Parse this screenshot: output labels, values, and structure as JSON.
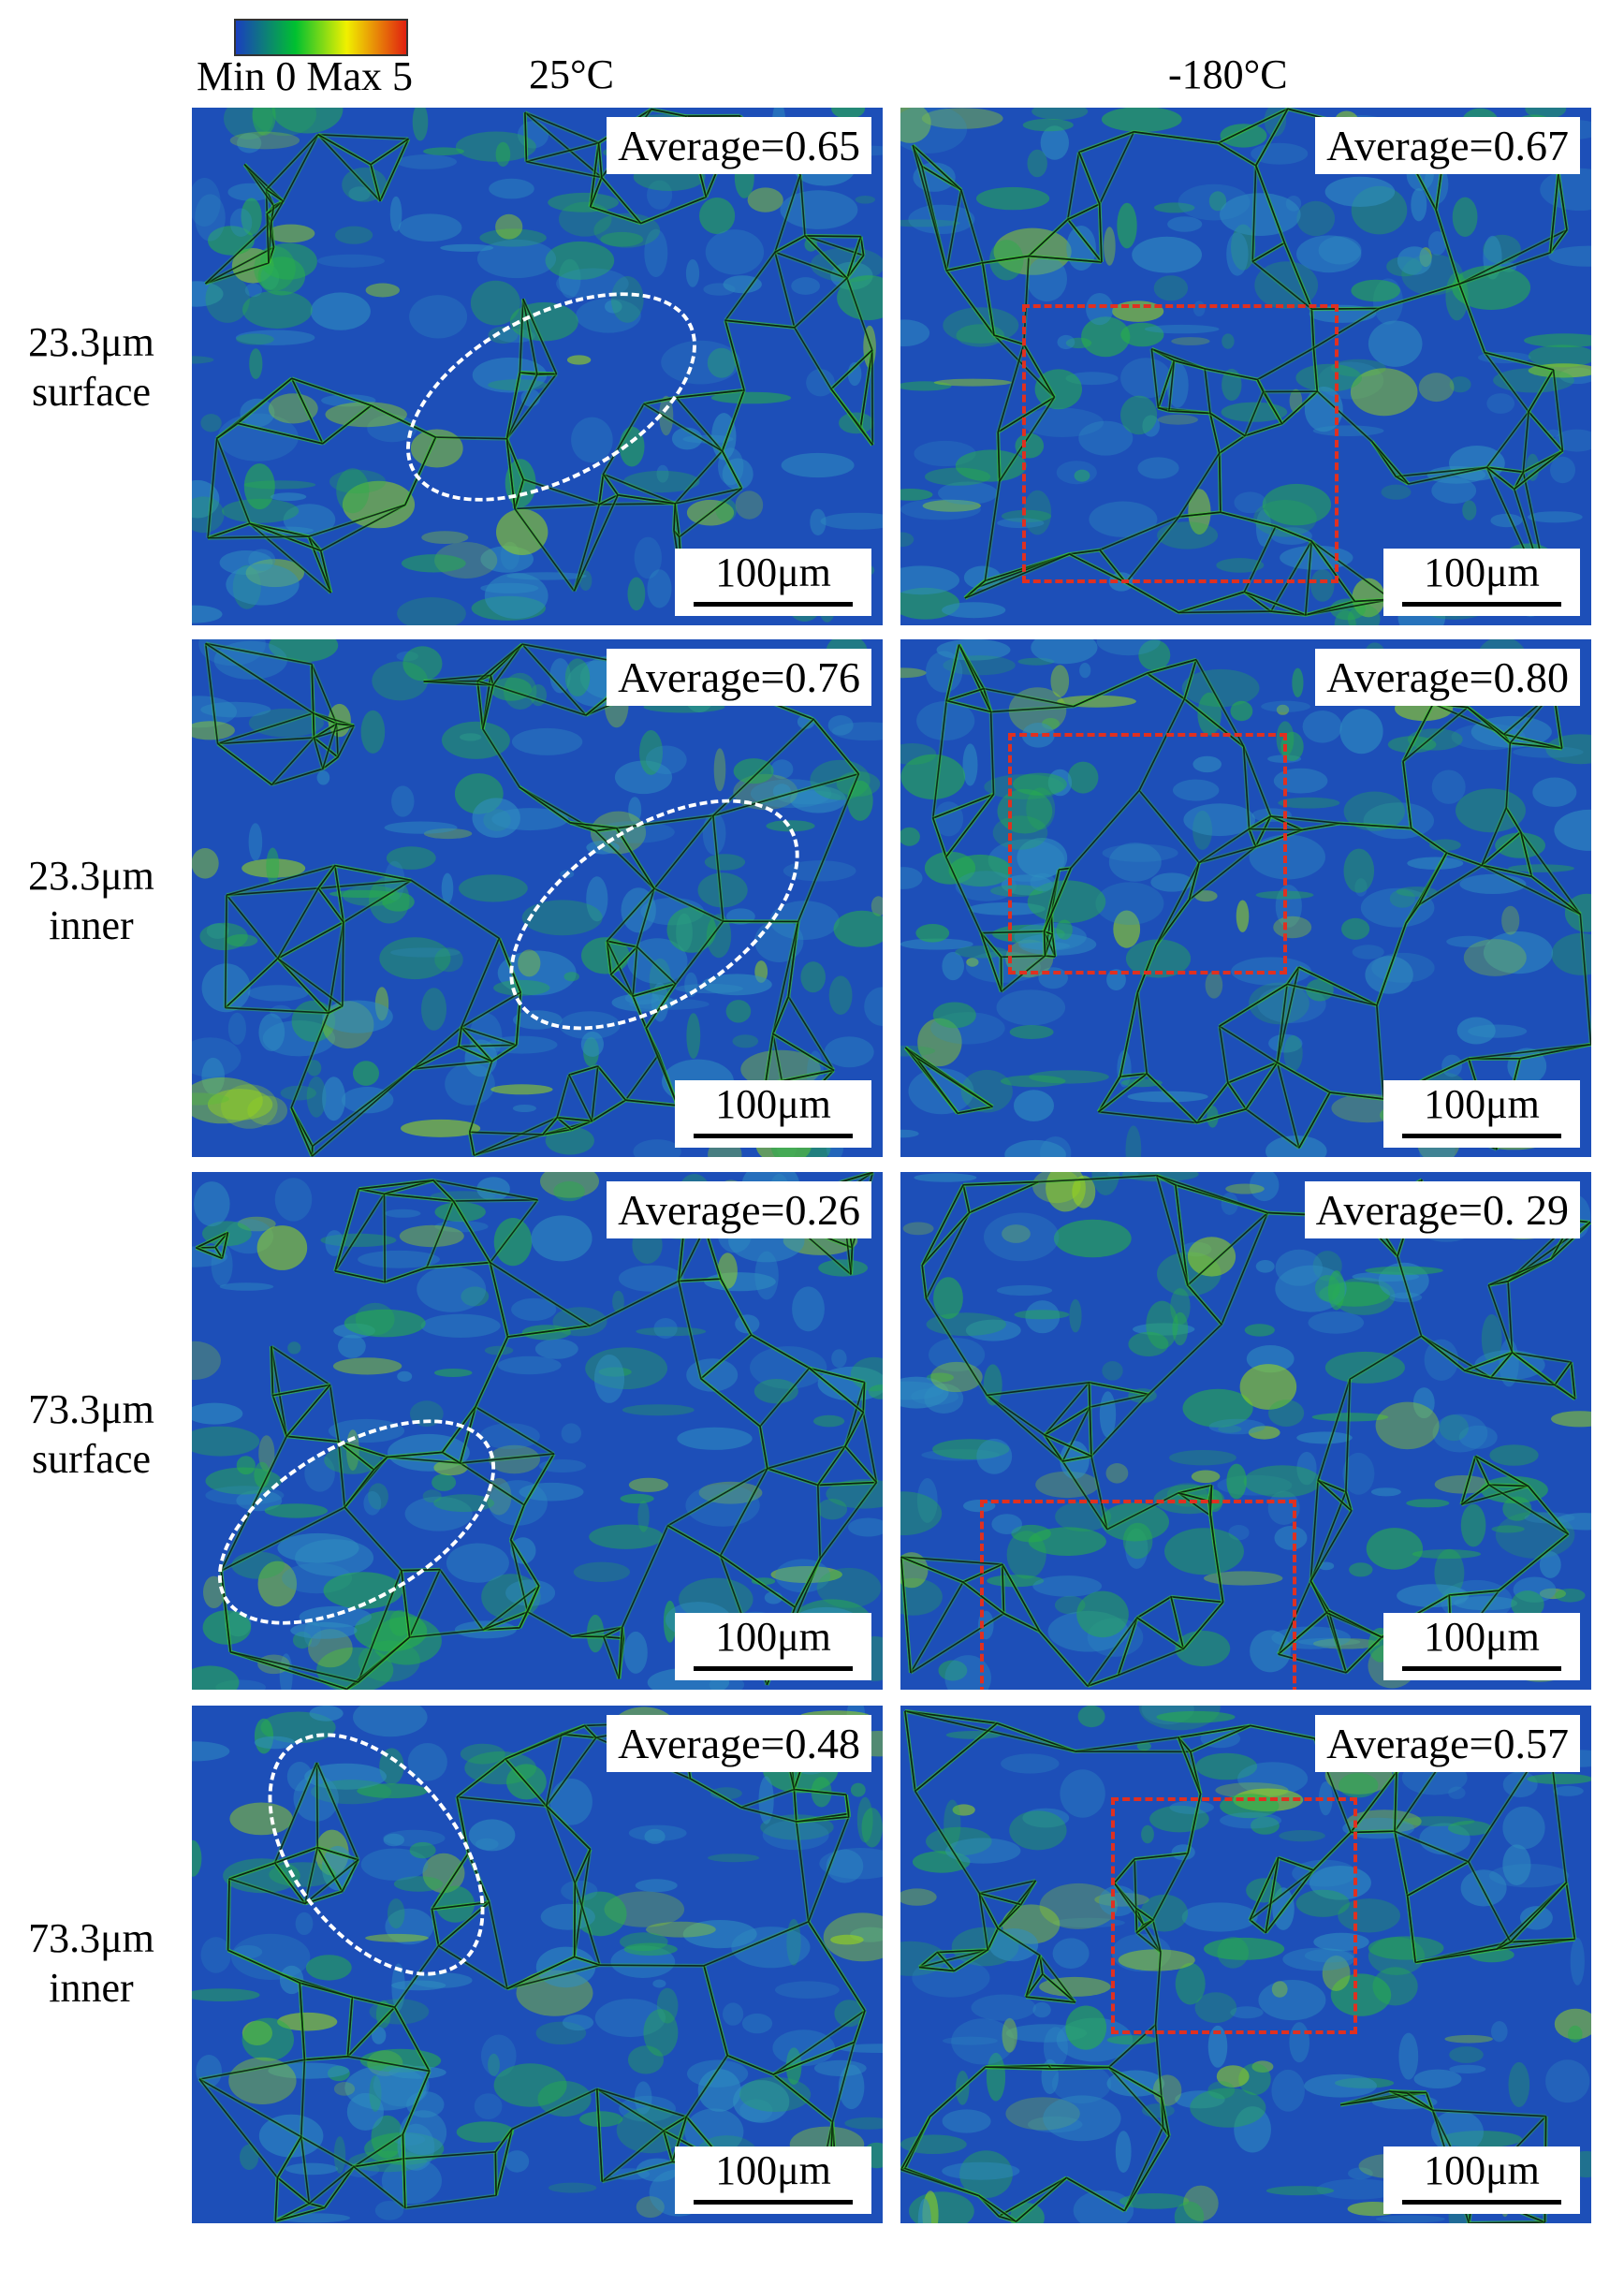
{
  "legend": {
    "label": "Min 0 Max 5",
    "colors": [
      "#1a3fbf",
      "#00c030",
      "#f0f000",
      "#e02010"
    ]
  },
  "columns": [
    "25°C",
    "-180°C"
  ],
  "rows": [
    {
      "label_line1": "23.3μm",
      "label_line2": "surface"
    },
    {
      "label_line1": "23.3μm",
      "label_line2": "inner"
    },
    {
      "label_line1": "73.3μm",
      "label_line2": "surface"
    },
    {
      "label_line1": "73.3μm",
      "label_line2": "inner"
    }
  ],
  "panels": [
    {
      "average": "Average=0.65",
      "scale": "100μm",
      "highlight": "ellipse"
    },
    {
      "average": "Average=0.67",
      "scale": "100μm",
      "highlight": "rectangle"
    },
    {
      "average": "Average=0.76",
      "scale": "100μm",
      "highlight": "ellipse"
    },
    {
      "average": "Average=0.80",
      "scale": "100μm",
      "highlight": "rectangle"
    },
    {
      "average": "Average=0.26",
      "scale": "100μm",
      "highlight": "ellipse"
    },
    {
      "average": "Average=0. 29",
      "scale": "100μm",
      "highlight": "rectangle"
    },
    {
      "average": "Average=0.48",
      "scale": "100μm",
      "highlight": "ellipse"
    },
    {
      "average": "Average=0.57",
      "scale": "100μm",
      "highlight": "rectangle"
    }
  ]
}
